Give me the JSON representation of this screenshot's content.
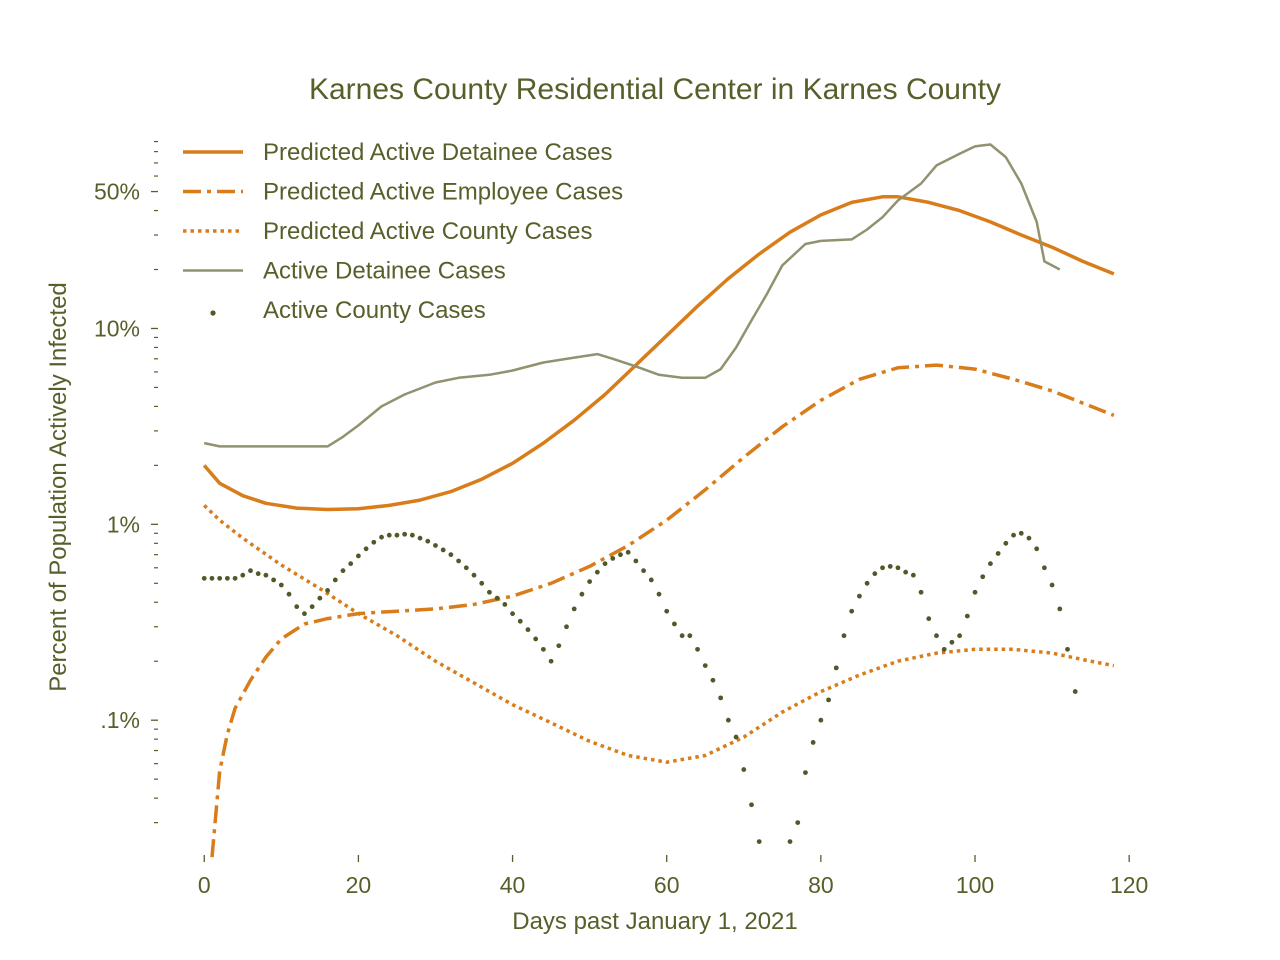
{
  "colors": {
    "text": "#575f2a",
    "predicted": "#d97c1a",
    "observed_line": "#929170",
    "observed_dots": "#4f5a2a"
  },
  "chart_data": {
    "type": "line",
    "title": "Karnes County Residential Center in Karnes County",
    "xlabel": "Days past January 1, 2021",
    "ylabel": "Percent of Population Actively Infected",
    "xlim": [
      -6,
      124
    ],
    "ylim_percent": [
      0.0205,
      123
    ],
    "yscale": "log",
    "x_ticks": [
      0,
      20,
      40,
      60,
      80,
      100,
      120
    ],
    "x_tick_labels": [
      "0",
      "20",
      "40",
      "60",
      "80",
      "100",
      "120"
    ],
    "y_ticks": [
      0.1,
      1,
      10,
      50
    ],
    "y_tick_labels": [
      ".1%",
      "1%",
      "10%",
      "50%"
    ],
    "grid": false,
    "legend_position": "top-left",
    "series": [
      {
        "name": "Predicted Active Detainee Cases",
        "style": "solid",
        "points": [
          [
            0,
            2.0
          ],
          [
            2,
            1.62
          ],
          [
            5,
            1.4
          ],
          [
            8,
            1.28
          ],
          [
            12,
            1.21
          ],
          [
            16,
            1.19
          ],
          [
            20,
            1.2
          ],
          [
            24,
            1.25
          ],
          [
            28,
            1.33
          ],
          [
            32,
            1.47
          ],
          [
            36,
            1.7
          ],
          [
            40,
            2.05
          ],
          [
            44,
            2.6
          ],
          [
            48,
            3.4
          ],
          [
            52,
            4.6
          ],
          [
            56,
            6.5
          ],
          [
            60,
            9.2
          ],
          [
            64,
            13
          ],
          [
            68,
            18
          ],
          [
            72,
            24
          ],
          [
            76,
            31
          ],
          [
            80,
            38
          ],
          [
            84,
            44
          ],
          [
            88,
            47
          ],
          [
            90,
            47
          ],
          [
            94,
            44
          ],
          [
            98,
            40
          ],
          [
            102,
            35
          ],
          [
            106,
            30
          ],
          [
            110,
            26
          ],
          [
            114,
            22
          ],
          [
            118,
            19
          ]
        ]
      },
      {
        "name": "Predicted Active Employee Cases",
        "style": "dashdot",
        "points": [
          [
            1,
            0.02
          ],
          [
            2,
            0.055
          ],
          [
            3,
            0.085
          ],
          [
            4,
            0.115
          ],
          [
            6,
            0.16
          ],
          [
            8,
            0.21
          ],
          [
            10,
            0.26
          ],
          [
            13,
            0.31
          ],
          [
            16,
            0.33
          ],
          [
            20,
            0.35
          ],
          [
            25,
            0.36
          ],
          [
            30,
            0.37
          ],
          [
            35,
            0.39
          ],
          [
            40,
            0.43
          ],
          [
            45,
            0.5
          ],
          [
            50,
            0.61
          ],
          [
            55,
            0.78
          ],
          [
            60,
            1.05
          ],
          [
            65,
            1.5
          ],
          [
            70,
            2.2
          ],
          [
            75,
            3.15
          ],
          [
            80,
            4.3
          ],
          [
            85,
            5.5
          ],
          [
            90,
            6.3
          ],
          [
            95,
            6.5
          ],
          [
            100,
            6.2
          ],
          [
            105,
            5.5
          ],
          [
            110,
            4.8
          ],
          [
            118,
            3.6
          ]
        ]
      },
      {
        "name": "Predicted Active County Cases",
        "style": "dotted",
        "points": [
          [
            0,
            1.25
          ],
          [
            2,
            1.05
          ],
          [
            5,
            0.85
          ],
          [
            10,
            0.62
          ],
          [
            15,
            0.47
          ],
          [
            20,
            0.35
          ],
          [
            25,
            0.27
          ],
          [
            30,
            0.2
          ],
          [
            35,
            0.155
          ],
          [
            40,
            0.12
          ],
          [
            45,
            0.097
          ],
          [
            50,
            0.078
          ],
          [
            55,
            0.066
          ],
          [
            60,
            0.061
          ],
          [
            65,
            0.066
          ],
          [
            70,
            0.082
          ],
          [
            75,
            0.11
          ],
          [
            80,
            0.14
          ],
          [
            85,
            0.17
          ],
          [
            90,
            0.2
          ],
          [
            95,
            0.22
          ],
          [
            100,
            0.23
          ],
          [
            105,
            0.23
          ],
          [
            110,
            0.22
          ],
          [
            115,
            0.2
          ],
          [
            118,
            0.19
          ]
        ]
      },
      {
        "name": "Active Detainee Cases",
        "style": "thin",
        "points": [
          [
            0,
            2.6
          ],
          [
            2,
            2.5
          ],
          [
            6,
            2.5
          ],
          [
            10,
            2.5
          ],
          [
            16,
            2.5
          ],
          [
            18,
            2.8
          ],
          [
            20,
            3.2
          ],
          [
            23,
            4.0
          ],
          [
            26,
            4.6
          ],
          [
            30,
            5.3
          ],
          [
            33,
            5.6
          ],
          [
            37,
            5.8
          ],
          [
            40,
            6.1
          ],
          [
            44,
            6.7
          ],
          [
            48,
            7.1
          ],
          [
            51,
            7.4
          ],
          [
            53,
            7.0
          ],
          [
            56,
            6.4
          ],
          [
            59,
            5.8
          ],
          [
            62,
            5.6
          ],
          [
            65,
            5.6
          ],
          [
            67,
            6.2
          ],
          [
            69,
            8.0
          ],
          [
            71,
            11
          ],
          [
            73,
            15
          ],
          [
            75,
            21
          ],
          [
            78,
            27
          ],
          [
            80,
            28
          ],
          [
            84,
            28.5
          ],
          [
            86,
            32
          ],
          [
            88,
            37
          ],
          [
            90,
            45
          ],
          [
            93,
            55
          ],
          [
            95,
            68
          ],
          [
            98,
            78
          ],
          [
            100,
            85
          ],
          [
            101,
            86
          ],
          [
            102,
            87
          ],
          [
            104,
            75
          ],
          [
            106,
            55
          ],
          [
            108,
            35
          ],
          [
            109,
            22
          ],
          [
            111,
            20
          ]
        ]
      },
      {
        "name": "Active County Cases",
        "style": "dots",
        "points": [
          [
            0,
            0.53
          ],
          [
            1,
            0.53
          ],
          [
            2,
            0.53
          ],
          [
            3,
            0.53
          ],
          [
            4,
            0.53
          ],
          [
            5,
            0.55
          ],
          [
            6,
            0.58
          ],
          [
            7,
            0.56
          ],
          [
            8,
            0.55
          ],
          [
            9,
            0.52
          ],
          [
            10,
            0.49
          ],
          [
            11,
            0.44
          ],
          [
            12,
            0.38
          ],
          [
            13,
            0.35
          ],
          [
            14,
            0.38
          ],
          [
            15,
            0.42
          ],
          [
            16,
            0.46
          ],
          [
            17,
            0.52
          ],
          [
            18,
            0.58
          ],
          [
            19,
            0.63
          ],
          [
            20,
            0.69
          ],
          [
            21,
            0.75
          ],
          [
            22,
            0.81
          ],
          [
            23,
            0.86
          ],
          [
            24,
            0.88
          ],
          [
            25,
            0.88
          ],
          [
            26,
            0.89
          ],
          [
            27,
            0.88
          ],
          [
            28,
            0.85
          ],
          [
            29,
            0.82
          ],
          [
            30,
            0.78
          ],
          [
            31,
            0.74
          ],
          [
            32,
            0.7
          ],
          [
            33,
            0.65
          ],
          [
            34,
            0.6
          ],
          [
            35,
            0.55
          ],
          [
            36,
            0.5
          ],
          [
            37,
            0.45
          ],
          [
            38,
            0.42
          ],
          [
            39,
            0.39
          ],
          [
            40,
            0.35
          ],
          [
            41,
            0.32
          ],
          [
            42,
            0.29
          ],
          [
            43,
            0.26
          ],
          [
            44,
            0.23
          ],
          [
            45,
            0.2
          ],
          [
            46,
            0.24
          ],
          [
            47,
            0.3
          ],
          [
            48,
            0.37
          ],
          [
            49,
            0.44
          ],
          [
            50,
            0.51
          ],
          [
            51,
            0.57
          ],
          [
            52,
            0.63
          ],
          [
            53,
            0.67
          ],
          [
            54,
            0.7
          ],
          [
            55,
            0.72
          ],
          [
            56,
            0.65
          ],
          [
            57,
            0.58
          ],
          [
            58,
            0.52
          ],
          [
            59,
            0.44
          ],
          [
            60,
            0.36
          ],
          [
            61,
            0.31
          ],
          [
            62,
            0.27
          ],
          [
            63,
            0.27
          ],
          [
            64,
            0.23
          ],
          [
            65,
            0.19
          ],
          [
            66,
            0.16
          ],
          [
            67,
            0.13
          ],
          [
            68,
            0.1
          ],
          [
            69,
            0.082
          ],
          [
            70,
            0.056
          ],
          [
            71,
            0.037
          ],
          [
            72,
            0.024
          ],
          [
            76,
            0.024
          ],
          [
            77,
            0.03
          ],
          [
            78,
            0.054
          ],
          [
            79,
            0.077
          ],
          [
            80,
            0.1
          ],
          [
            81,
            0.127
          ],
          [
            82,
            0.185
          ],
          [
            83,
            0.27
          ],
          [
            84,
            0.36
          ],
          [
            85,
            0.43
          ],
          [
            86,
            0.5
          ],
          [
            87,
            0.56
          ],
          [
            88,
            0.6
          ],
          [
            89,
            0.61
          ],
          [
            90,
            0.6
          ],
          [
            91,
            0.57
          ],
          [
            92,
            0.55
          ],
          [
            93,
            0.45
          ],
          [
            94,
            0.33
          ],
          [
            95,
            0.27
          ],
          [
            96,
            0.23
          ],
          [
            97,
            0.25
          ],
          [
            98,
            0.27
          ],
          [
            99,
            0.34
          ],
          [
            100,
            0.45
          ],
          [
            101,
            0.54
          ],
          [
            102,
            0.63
          ],
          [
            103,
            0.71
          ],
          [
            104,
            0.8
          ],
          [
            105,
            0.88
          ],
          [
            106,
            0.9
          ],
          [
            107,
            0.85
          ],
          [
            108,
            0.75
          ],
          [
            109,
            0.6
          ],
          [
            110,
            0.49
          ],
          [
            111,
            0.37
          ],
          [
            112,
            0.23
          ],
          [
            113,
            0.14
          ]
        ]
      }
    ]
  }
}
